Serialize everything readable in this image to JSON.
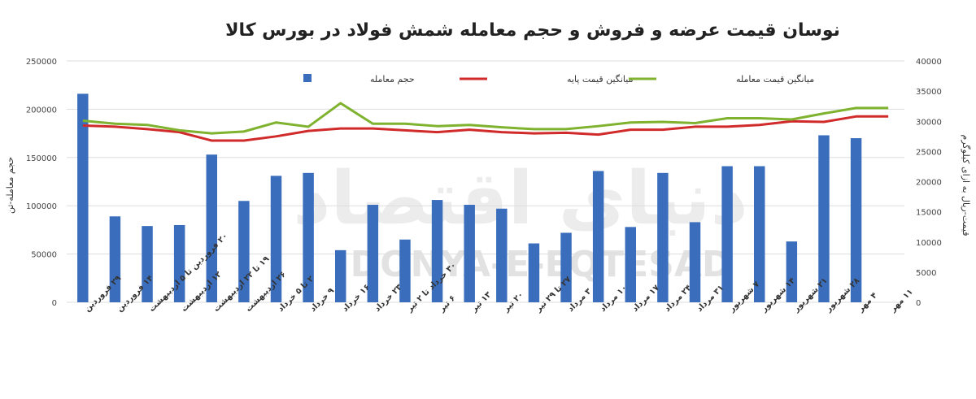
{
  "watermark": {
    "latin": "DONYA-E-EQTESAD",
    "persian": "دنیای اقتصاد"
  },
  "chart_data": {
    "type": "bar",
    "title": "نوسان قیمت عرضه و فروش و حجم معامله شمش فولاد در بورس کالا",
    "ylabel_left": "حجم معامله-تن",
    "ylabel_right": "قیمت-ریال به ازای کیلوگرم",
    "ylim_left": [
      0,
      250000
    ],
    "ylim_right": [
      0,
      40000
    ],
    "yticks_left": [
      "0",
      "50000",
      "100000",
      "150000",
      "200000",
      "250000"
    ],
    "yticks_right": [
      "0",
      "5000",
      "10000",
      "15000",
      "20000",
      "25000",
      "30000",
      "35000",
      "40000"
    ],
    "legend_position": "top",
    "categories": [
      "۲۹ فروردین",
      "۱۴ فروردین",
      "۲۰ فروردین تا ۵ اردیبهشت",
      "۱۲ اردیبهشت",
      "۱۹ تا ۲۲ اردیبهشت",
      "۲۶ اردیبهشت",
      "۲ تا ۵ خرداد",
      "۹ خرداد",
      "۱۶ خرداد",
      "۲۳ خرداد",
      "۳۰ خرداد تا ۲ تیر",
      "۶ تیر",
      "۱۳ تیر",
      "۲۰ تیر",
      "۲۷ تا ۲۹ تیر",
      "۳ مرداد",
      "۱۰ مرداد",
      "۱۷ مرداد",
      "۲۴ مرداد",
      "۳۱ مرداد",
      "۷ شهریور",
      "۱۴ شهریور",
      "۲۱ شهریور",
      "۲۸ شهریور",
      "۴ مهر",
      "۱۱ مهر"
    ],
    "series": [
      {
        "name": "حجم معامله",
        "type": "bar",
        "axis": "left",
        "color": "#3a6ebc",
        "values": [
          216000,
          89000,
          79000,
          80000,
          153000,
          105000,
          131000,
          134000,
          54000,
          101000,
          65000,
          106000,
          101000,
          97000,
          61000,
          72000,
          136000,
          78000,
          134000,
          83000,
          141000,
          141000,
          63000,
          173000,
          170000,
          0
        ]
      },
      {
        "name": "میانگین قیمت پایه",
        "type": "line",
        "axis": "right",
        "color": "#d12a2a",
        "values": [
          29300,
          29100,
          28700,
          28200,
          26800,
          26800,
          27500,
          28400,
          28800,
          28800,
          28500,
          28200,
          28600,
          28200,
          28000,
          28100,
          27800,
          28600,
          28600,
          29100,
          29100,
          29400,
          30000,
          29900,
          30800,
          30800
        ]
      },
      {
        "name": "میانگین قیمت معامله",
        "type": "line",
        "axis": "right",
        "color": "#7fb22f",
        "values": [
          30100,
          29600,
          29400,
          28500,
          28000,
          28300,
          29800,
          29100,
          33000,
          29600,
          29600,
          29200,
          29400,
          29000,
          28700,
          28700,
          29200,
          29800,
          29900,
          29700,
          30500,
          30500,
          30300,
          31300,
          32200,
          32200
        ]
      }
    ]
  }
}
